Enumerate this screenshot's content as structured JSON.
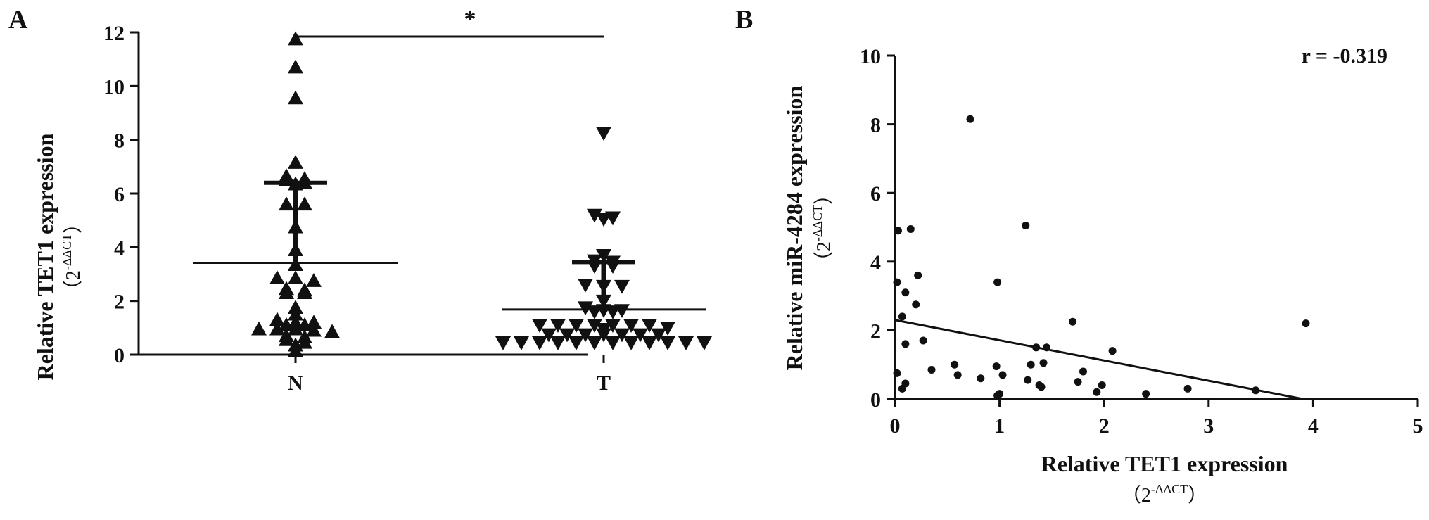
{
  "chart_data": [
    {
      "panel_label": "A",
      "type": "scatter",
      "subtype": "dot-plot",
      "categories": [
        "N",
        "T"
      ],
      "ylabel": "Relative TET1 expression",
      "ylabel_unit_base": "2",
      "ylabel_unit_exp": "-ΔΔCT",
      "ylim": [
        0,
        12
      ],
      "yticks": [
        "0",
        "2",
        "4",
        "6",
        "8",
        "10",
        "12"
      ],
      "significance": "*",
      "series": [
        {
          "name": "N",
          "marker": "triangle-up",
          "mean": 3.42,
          "sd_upper": 6.4,
          "sd_lower": 0.0,
          "values": [
            11.75,
            10.7,
            9.55,
            7.15,
            6.65,
            6.5,
            6.4,
            6.35,
            6.55,
            5.6,
            5.6,
            4.75,
            3.9,
            3.35,
            2.85,
            2.85,
            2.75,
            2.4,
            2.45,
            2.3,
            2.3,
            1.75,
            1.5,
            1.2,
            1.2,
            1.3,
            1.1,
            1.1,
            0.95,
            0.95,
            0.95,
            0.9,
            0.85,
            0.7,
            0.65,
            0.55,
            0.45,
            0.35,
            0.15
          ]
        },
        {
          "name": "T",
          "marker": "triangle-down",
          "mean": 1.68,
          "sd_upper": 3.45,
          "sd_lower": 0.0,
          "values": [
            8.25,
            5.2,
            5.1,
            5.05,
            3.7,
            3.5,
            3.45,
            3.3,
            3.3,
            2.6,
            2.55,
            2.55,
            2.0,
            1.75,
            1.65,
            1.65,
            1.6,
            1.6,
            1.1,
            1.1,
            1.1,
            1.1,
            1.1,
            1.1,
            1.1,
            1.0,
            0.95,
            0.75,
            0.75,
            0.75,
            0.75,
            0.75,
            0.75,
            0.75,
            0.45,
            0.45,
            0.45,
            0.45,
            0.45,
            0.45,
            0.45,
            0.45,
            0.45,
            0.45,
            0.45,
            0.45
          ]
        }
      ]
    },
    {
      "panel_label": "B",
      "type": "scatter",
      "xlabel": "Relative TET1 expression",
      "xlabel_unit_base": "2",
      "xlabel_unit_exp": "-ΔΔCT",
      "ylabel": "Relative miR-4284 expression",
      "ylabel_unit_base": "2",
      "ylabel_unit_exp": "-ΔΔCT",
      "xlim": [
        0,
        5
      ],
      "ylim": [
        0,
        10
      ],
      "xticks": [
        "0",
        "1",
        "2",
        "3",
        "4",
        "5"
      ],
      "yticks": [
        "0",
        "2",
        "4",
        "6",
        "8",
        "10"
      ],
      "annotation": "r = -0.319",
      "regression_line": {
        "x": [
          0,
          3.9
        ],
        "y": [
          2.3,
          0
        ]
      },
      "points": [
        [
          0.03,
          4.9
        ],
        [
          0.15,
          4.95
        ],
        [
          0.02,
          3.4
        ],
        [
          0.1,
          3.1
        ],
        [
          0.22,
          3.6
        ],
        [
          0.2,
          2.75
        ],
        [
          0.07,
          2.4
        ],
        [
          0.1,
          1.6
        ],
        [
          0.27,
          1.7
        ],
        [
          0.02,
          0.75
        ],
        [
          0.1,
          0.45
        ],
        [
          0.07,
          0.3
        ],
        [
          0.35,
          0.85
        ],
        [
          0.57,
          1.0
        ],
        [
          0.6,
          0.7
        ],
        [
          0.72,
          8.15
        ],
        [
          0.82,
          0.6
        ],
        [
          0.98,
          3.4
        ],
        [
          0.97,
          0.95
        ],
        [
          1.03,
          0.7
        ],
        [
          1.0,
          0.15
        ],
        [
          0.98,
          0.1
        ],
        [
          1.25,
          5.05
        ],
        [
          1.3,
          1.0
        ],
        [
          1.27,
          0.55
        ],
        [
          1.35,
          1.5
        ],
        [
          1.38,
          0.4
        ],
        [
          1.42,
          1.05
        ],
        [
          1.4,
          0.35
        ],
        [
          1.45,
          1.5
        ],
        [
          1.7,
          2.25
        ],
        [
          1.75,
          0.5
        ],
        [
          1.8,
          0.8
        ],
        [
          1.93,
          0.2
        ],
        [
          1.98,
          0.4
        ],
        [
          2.08,
          1.4
        ],
        [
          2.4,
          0.15
        ],
        [
          2.8,
          0.3
        ],
        [
          3.45,
          0.25
        ],
        [
          3.93,
          2.2
        ]
      ]
    }
  ]
}
